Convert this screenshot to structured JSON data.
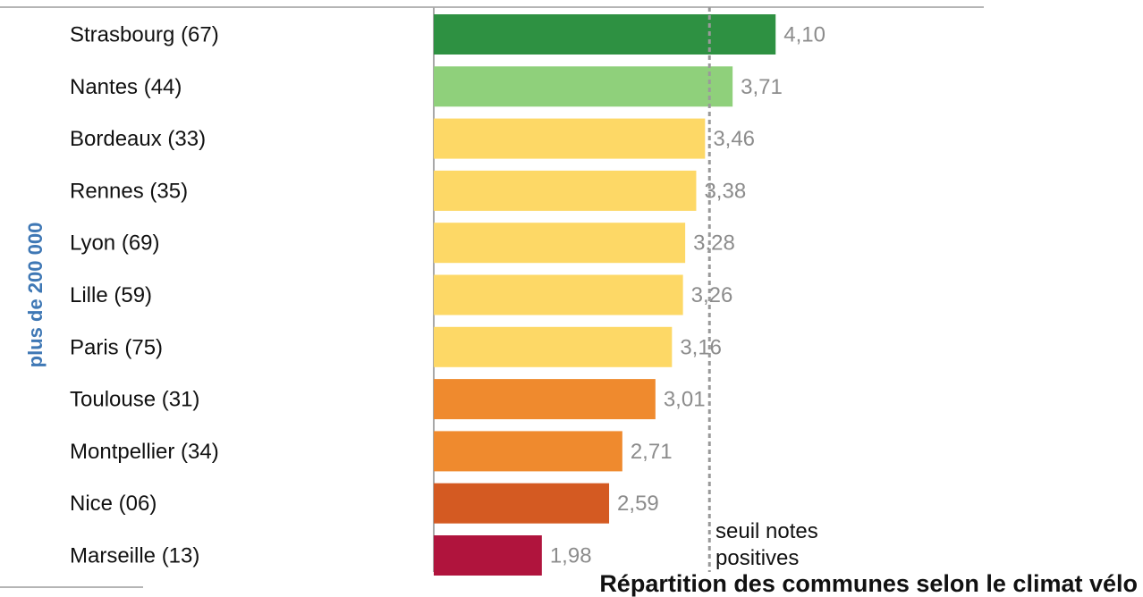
{
  "chart_data": {
    "type": "bar",
    "orientation": "horizontal",
    "group_label": "plus de 200 000",
    "categories": [
      "Strasbourg (67)",
      "Nantes (44)",
      "Bordeaux (33)",
      "Rennes (35)",
      "Lyon (69)",
      "Lille (59)",
      "Paris (75)",
      "Toulouse (31)",
      "Montpellier (34)",
      "Nice (06)",
      "Marseille (13)"
    ],
    "values": [
      4.1,
      3.71,
      3.46,
      3.38,
      3.28,
      3.26,
      3.16,
      3.01,
      2.71,
      2.59,
      1.98
    ],
    "value_labels": [
      "4,10",
      "3,71",
      "3,46",
      "3,38",
      "3,28",
      "3,26",
      "3,16",
      "3,01",
      "2,71",
      "2,59",
      "1,98"
    ],
    "bar_colors": [
      "#2e9142",
      "#8fd07b",
      "#fdd866",
      "#fdd866",
      "#fdd866",
      "#fdd866",
      "#fdd866",
      "#ef8a2e",
      "#ef8a2e",
      "#d45a22",
      "#b0143d"
    ],
    "threshold": {
      "value": 3.5,
      "label": "seuil notes positives"
    },
    "caption": "Répartition des communes selon le climat vélo",
    "xlim": [
      1.0,
      5.0
    ]
  }
}
